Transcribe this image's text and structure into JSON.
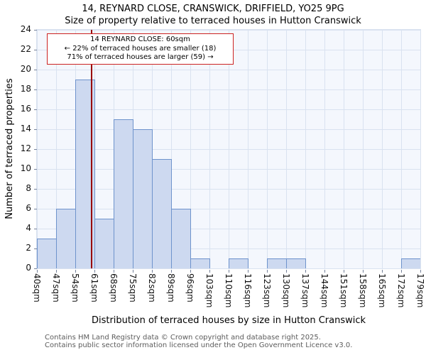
{
  "title": {
    "line1": "14, REYNARD CLOSE, CRANSWICK, DRIFFIELD, YO25 9PG",
    "line2": "Size of property relative to terraced houses in Hutton Cranswick"
  },
  "annotation": {
    "line1": "14 REYNARD CLOSE: 60sqm",
    "line2": "← 22% of terraced houses are smaller (18)",
    "line3": "71% of terraced houses are larger (59) →"
  },
  "footer": {
    "line1": "Contains HM Land Registry data © Crown copyright and database right 2025.",
    "line2": "Contains public sector information licensed under the Open Government Licence v3.0."
  },
  "chart_data": {
    "type": "bar",
    "title": "14, REYNARD CLOSE, CRANSWICK, DRIFFIELD, YO25 9PG",
    "subtitle": "Size of property relative to terraced houses in Hutton Cranswick",
    "xlabel": "Distribution of terraced houses by size in Hutton Cranswick",
    "ylabel": "Number of terraced properties",
    "x_tick_labels": [
      "40sqm",
      "47sqm",
      "54sqm",
      "61sqm",
      "68sqm",
      "75sqm",
      "82sqm",
      "89sqm",
      "96sqm",
      "103sqm",
      "110sqm",
      "116sqm",
      "123sqm",
      "130sqm",
      "137sqm",
      "144sqm",
      "151sqm",
      "158sqm",
      "165sqm",
      "172sqm",
      "179sqm"
    ],
    "bin_counts": [
      3,
      6,
      19,
      5,
      15,
      14,
      11,
      6,
      1,
      0,
      1,
      0,
      1,
      1,
      0,
      0,
      0,
      0,
      0,
      1
    ],
    "y_ticks": [
      0,
      2,
      4,
      6,
      8,
      10,
      12,
      14,
      16,
      18,
      20,
      22,
      24
    ],
    "ylim": [
      0,
      24
    ],
    "grid": true,
    "marker": {
      "size_sqm": 60,
      "label": "14 REYNARD CLOSE: 60sqm"
    },
    "colors": {
      "bar_fill": "#cdd9f0",
      "bar_border": "#6e93cc",
      "marker_line": "#990000",
      "annotation_border": "#cc2222",
      "grid": "#d9e2f0",
      "plot_bg": "#f4f7fd"
    }
  }
}
